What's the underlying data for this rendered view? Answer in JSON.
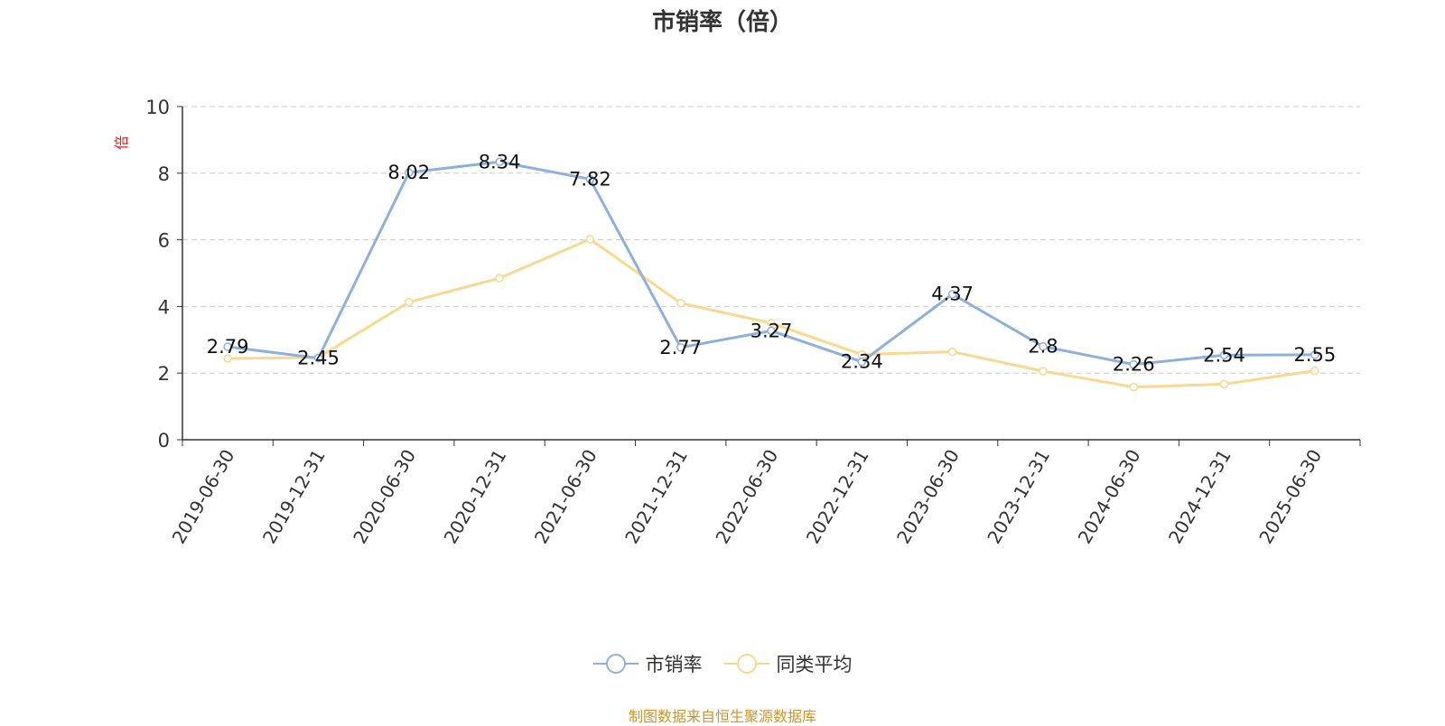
{
  "chart_data": {
    "type": "line",
    "title": "市销率（倍）",
    "ylabel": "倍",
    "categories": [
      "2019-06-30",
      "2019-12-31",
      "2020-06-30",
      "2020-12-31",
      "2021-06-30",
      "2021-12-31",
      "2022-06-30",
      "2022-12-31",
      "2023-06-30",
      "2023-12-31",
      "2024-06-30",
      "2024-12-31",
      "2025-06-30"
    ],
    "ylim": [
      0,
      10
    ],
    "yticks": [
      "0",
      "2",
      "4",
      "6",
      "8",
      "10"
    ],
    "grid": true,
    "legend_position": "bottom",
    "series": [
      {
        "name": "市销率",
        "color": "#8eb0dc",
        "values": [
          2.79,
          2.45,
          8.02,
          8.34,
          7.82,
          2.77,
          3.27,
          2.34,
          4.37,
          2.8,
          2.26,
          2.54,
          2.55
        ],
        "labels": [
          "2.79",
          "2.45",
          "8.02",
          "8.34",
          "7.82",
          "2.77",
          "3.27",
          "2.34",
          "4.37",
          "2.8",
          "2.26",
          "2.54",
          "2.55"
        ]
      },
      {
        "name": "同类平均",
        "color": "#f9d88f",
        "values": [
          2.44,
          2.47,
          4.13,
          4.85,
          6.02,
          4.1,
          3.5,
          2.56,
          2.64,
          2.06,
          1.58,
          1.67,
          2.07
        ]
      }
    ]
  },
  "source_note": "制图数据来自恒生聚源数据库",
  "colors": {
    "axis": "#333333",
    "grid": "#cccccc",
    "ylabel": "#e02020"
  }
}
